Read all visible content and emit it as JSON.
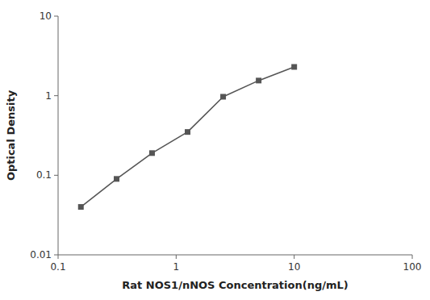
{
  "chart_data": {
    "type": "line",
    "x": [
      0.156,
      0.313,
      0.625,
      1.25,
      2.5,
      5.0,
      10.0
    ],
    "values": [
      0.04,
      0.09,
      0.19,
      0.35,
      0.97,
      1.55,
      2.3
    ],
    "xlabel": "Rat NOS1/nNOS Concentration(ng/mL)",
    "ylabel": "Optical Density",
    "xlim": [
      0.1,
      100
    ],
    "ylim": [
      0.01,
      10
    ],
    "xticks": [
      0.1,
      1,
      10,
      100
    ],
    "yticks": [
      0.01,
      0.1,
      1,
      10
    ],
    "log": true,
    "grid": false,
    "color": "#555555",
    "marker": "square"
  }
}
